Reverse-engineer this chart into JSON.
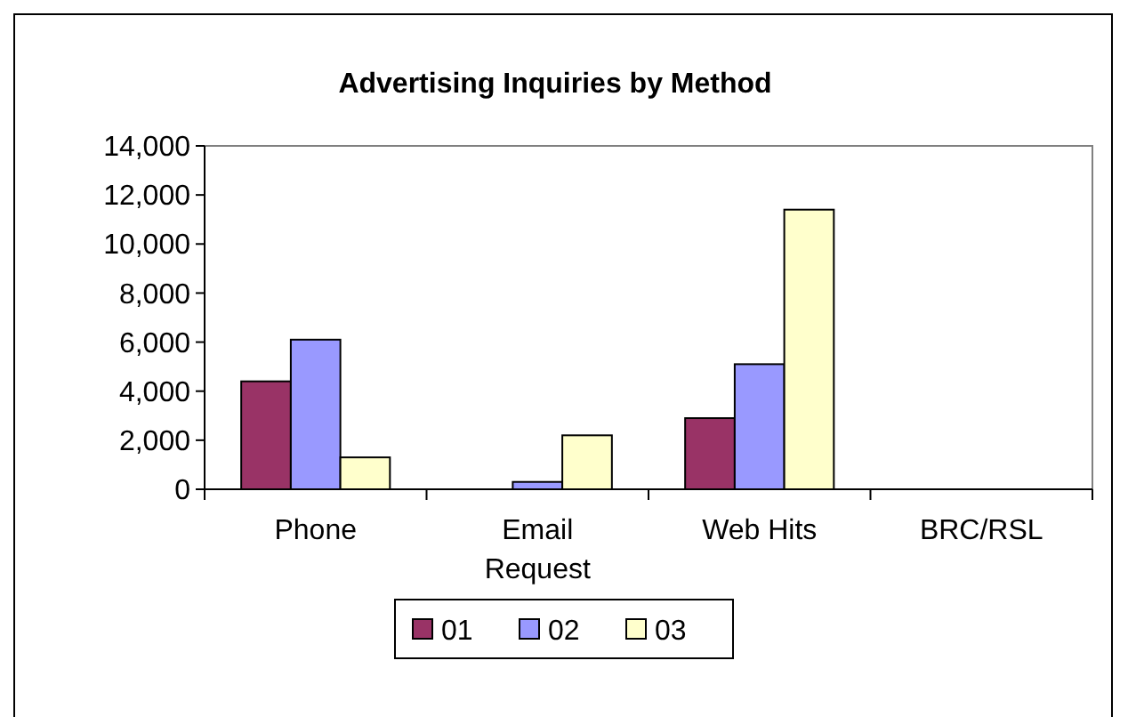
{
  "chart_data": {
    "type": "bar",
    "title": "Advertising Inquiries by Method",
    "categories": [
      "Phone",
      "Email Request",
      "Web Hits",
      "BRC/RSL"
    ],
    "series": [
      {
        "name": "01",
        "color": "#993366",
        "values": [
          4400,
          0,
          2900,
          0
        ]
      },
      {
        "name": "02",
        "color": "#9999ff",
        "values": [
          6100,
          300,
          5100,
          0
        ]
      },
      {
        "name": "03",
        "color": "#ffffcc",
        "values": [
          1300,
          2200,
          11400,
          0
        ]
      }
    ],
    "ylim": [
      0,
      14000
    ],
    "yticks": [
      0,
      {
        "value": 2000,
        "label": "2,000"
      },
      {
        "value": 4000,
        "label": "4,000"
      },
      {
        "value": 6000,
        "label": "6,000"
      },
      {
        "value": 8000,
        "label": "8,000"
      },
      {
        "value": 10000,
        "label": "10,000"
      },
      {
        "value": 12000,
        "label": "12,000"
      },
      {
        "value": 14000,
        "label": "14,000"
      }
    ],
    "grid": false,
    "legend": "bottom"
  }
}
